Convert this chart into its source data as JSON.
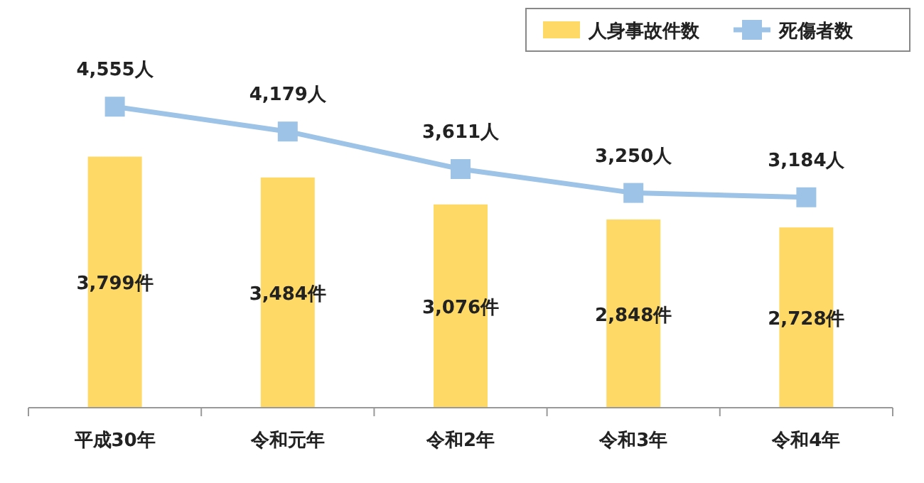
{
  "chart_data": {
    "type": "bar",
    "categories": [
      "平成30年",
      "令和元年",
      "令和2年",
      "令和3年",
      "令和4年"
    ],
    "legend": "top right",
    "grid": false,
    "series": [
      {
        "name": "人身事故件数",
        "color": "#ffd966",
        "values": [
          3799,
          3484,
          3076,
          2848,
          2728
        ],
        "value_labels": [
          "3,799件",
          "3,484件",
          "3,076件",
          "2,848件",
          "2,728件"
        ]
      },
      {
        "name": "死傷者数",
        "type": "line",
        "color": "#9dc3e6",
        "marker": "square",
        "line_style": "solid",
        "values": [
          4555,
          4179,
          3611,
          3250,
          3184
        ],
        "value_labels": [
          "4,555人",
          "4,179人",
          "3,611人",
          "3,250人",
          "3,184人"
        ]
      }
    ]
  }
}
